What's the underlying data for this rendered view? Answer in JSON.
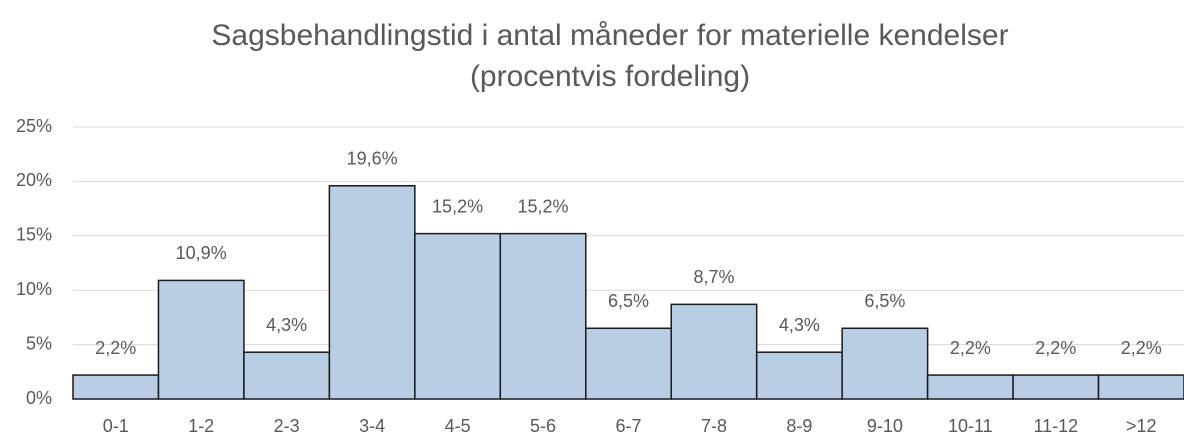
{
  "chart_data": {
    "type": "bar",
    "title": [
      "Sagsbehandlingstid i antal måneder for materielle kendelser",
      "(procentvis fordeling)"
    ],
    "categories": [
      "0-1",
      "1-2",
      "2-3",
      "3-4",
      "4-5",
      "5-6",
      "6-7",
      "7-8",
      "8-9",
      "9-10",
      "10-11",
      "11-12",
      ">12"
    ],
    "values": [
      2.2,
      10.9,
      4.3,
      19.6,
      15.2,
      15.2,
      6.5,
      8.7,
      4.3,
      6.5,
      2.2,
      2.2,
      2.2
    ],
    "value_labels": [
      "2,2%",
      "10,9%",
      "4,3%",
      "19,6%",
      "15,2%",
      "15,2%",
      "6,5%",
      "8,7%",
      "4,3%",
      "6,5%",
      "2,2%",
      "2,2%",
      "2,2%"
    ],
    "color": "#b9cde5",
    "ylim": [
      0,
      25
    ],
    "yticks": [
      {
        "value": 0,
        "label": "0%"
      },
      {
        "value": 5,
        "label": "5%"
      },
      {
        "value": 10,
        "label": "10%"
      },
      {
        "value": 15,
        "label": "15%"
      },
      {
        "value": 20,
        "label": "20%"
      },
      {
        "value": 25,
        "label": "25%"
      }
    ],
    "grid": true
  }
}
